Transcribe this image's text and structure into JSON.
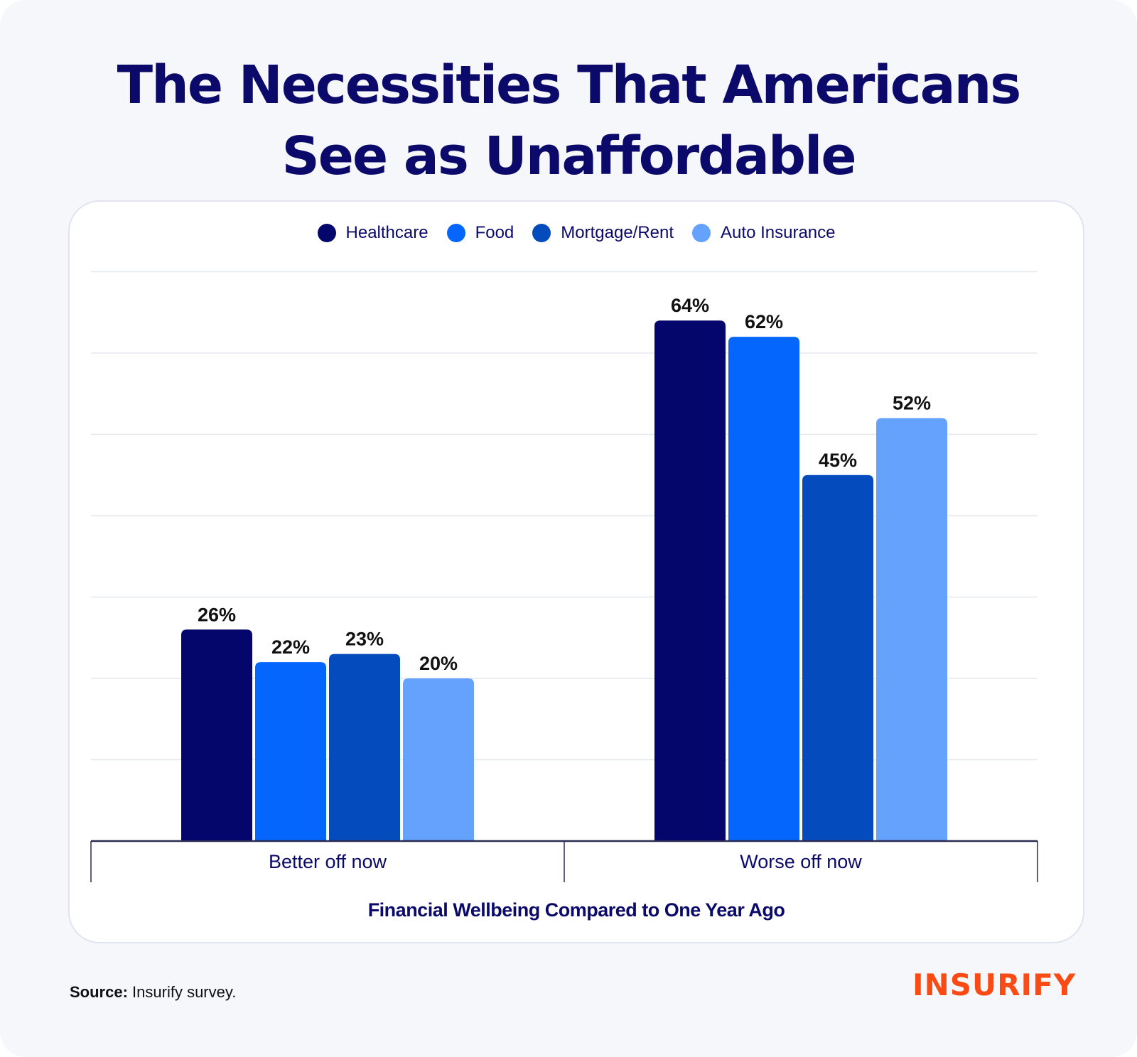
{
  "title_lines": [
    "The Necessities That Americans",
    "See as Unaffordable"
  ],
  "source": {
    "label": "Source:",
    "text": "Insurify survey."
  },
  "brand": "INSURIFY",
  "colors": {
    "Healthcare": "#05066b",
    "Food": "#0566fd",
    "Mortgage/Rent": "#044cbd",
    "Auto Insurance": "#64a2fd",
    "brand": "#fb4b15"
  },
  "chart_data": {
    "type": "bar",
    "categories": [
      "Better off now",
      "Worse off now"
    ],
    "series": [
      {
        "name": "Healthcare",
        "values": [
          26,
          64
        ]
      },
      {
        "name": "Food",
        "values": [
          22,
          62
        ]
      },
      {
        "name": "Mortgage/Rent",
        "values": [
          23,
          45
        ]
      },
      {
        "name": "Auto Insurance",
        "values": [
          20,
          52
        ]
      }
    ],
    "value_suffix": "%",
    "xlabel": "Financial Wellbeing Compared to One Year Ago",
    "ylabel": "",
    "ylim": [
      0,
      70
    ],
    "grid": true,
    "legend": "top-center"
  }
}
